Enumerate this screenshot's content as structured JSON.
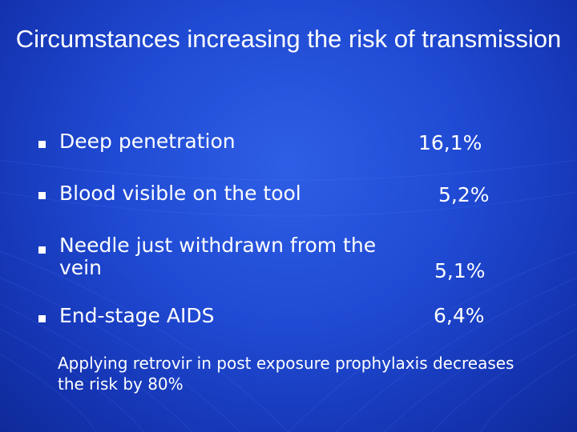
{
  "slide": {
    "title": "Circumstances increasing the risk of transmission",
    "items": [
      {
        "text": "Deep penetration",
        "value": "16,1%"
      },
      {
        "text": "Blood visible on the tool",
        "value": "5,2%"
      },
      {
        "text": "Needle just withdrawn from the vein",
        "value": "5,1%"
      },
      {
        "text": "End-stage AIDS",
        "value": "6,4%"
      }
    ],
    "note": "Applying retrovir in post exposure prophylaxis decreases the risk by 80%"
  },
  "colors": {
    "background": "#1f49d2",
    "text": "#ffffff"
  }
}
